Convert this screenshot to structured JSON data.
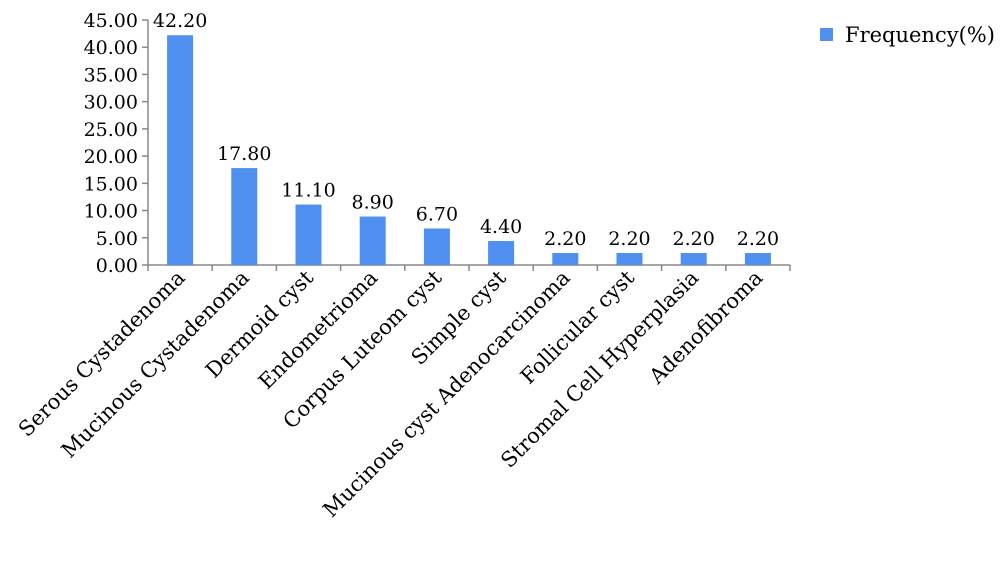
{
  "chart_data": {
    "type": "bar",
    "title": "",
    "xlabel": "",
    "ylabel": "",
    "categories": [
      "Serous Cystadenoma",
      "Mucinous Cystadenoma",
      "Dermoid cyst",
      "Endometrioma",
      "Corpus Luteom cyst",
      "Simple cyst",
      "Mucinous cyst Adenocarcinoma",
      "Follicular cyst",
      "Stromal Cell Hyperplasia",
      "Adenofibroma"
    ],
    "series": [
      {
        "name": "Frequency(%)",
        "values": [
          42.2,
          17.8,
          11.1,
          8.9,
          6.7,
          4.4,
          2.2,
          2.2,
          2.2,
          2.2
        ],
        "labels": [
          "42.20",
          "17.80",
          "11.10",
          "8.90",
          "6.70",
          "4.40",
          "2.20",
          "2.20",
          "2.20",
          "2.20"
        ],
        "color": "#4F8FEF"
      }
    ],
    "ylim": [
      0,
      45
    ],
    "yticks": [
      "0.00",
      "5.00",
      "10.00",
      "15.00",
      "20.00",
      "25.00",
      "30.00",
      "35.00",
      "40.00",
      "45.00"
    ],
    "grid": false,
    "legend_position": "top-right"
  }
}
